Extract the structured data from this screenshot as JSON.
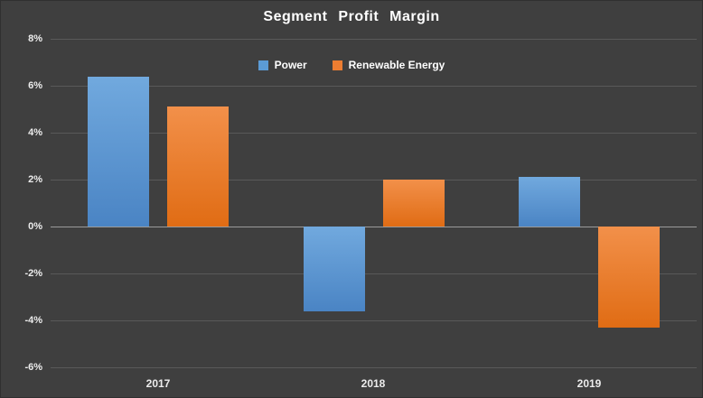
{
  "chart_data": {
    "type": "bar",
    "title": "Segment Profit Margin",
    "categories": [
      "2017",
      "2018",
      "2019"
    ],
    "series": [
      {
        "name": "Power",
        "color": "#5B9BD5",
        "gradient_top": "#71A9DE",
        "gradient_bottom": "#4A84C4",
        "values": [
          6.4,
          -3.6,
          2.1
        ]
      },
      {
        "name": "Renewable Energy",
        "color": "#ED7D31",
        "gradient_top": "#F2904A",
        "gradient_bottom": "#E06C14",
        "values": [
          5.1,
          2.0,
          -4.3
        ]
      }
    ],
    "xlabel": "",
    "ylabel": "",
    "ylim": [
      -6,
      8
    ],
    "ytick_step": 2,
    "ytick_labels": [
      "8%",
      "6%",
      "4%",
      "2%",
      "0%",
      "-2%",
      "-4%",
      "-6%"
    ],
    "grid": true,
    "legend_position": "top-center"
  },
  "colors": {
    "background": "#3F3F3F",
    "gridline": "#595959",
    "zero_line": "#9B9B9B",
    "text": "#ECECEC",
    "title_text": "#FFFFFF"
  }
}
